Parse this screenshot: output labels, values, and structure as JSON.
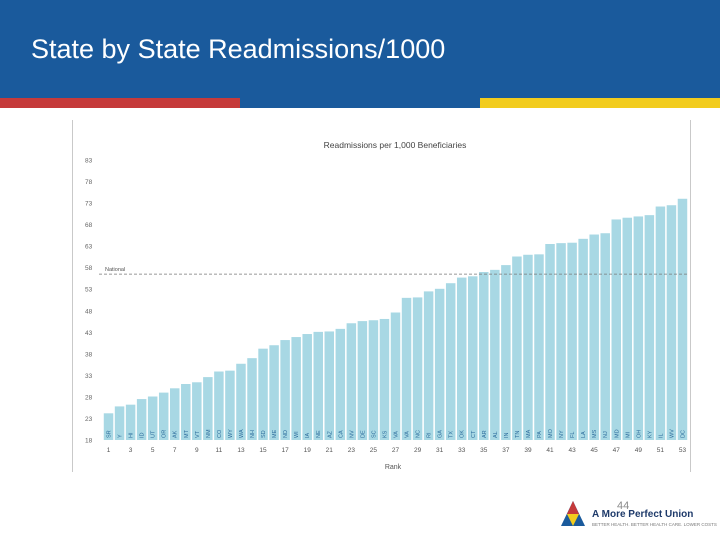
{
  "slide": {
    "title": "State by State Readmissions/1000",
    "page_number": "44"
  },
  "logo": {
    "name": "A More Perfect Union",
    "tagline": "BETTER HEALTH. BETTER HEALTH CARE. LOWER COSTS"
  },
  "colors": {
    "header": "#1a5a9c",
    "stripe_red": "#c53a3a",
    "stripe_blue": "#1a5a9c",
    "stripe_yellow": "#f2cc1e",
    "bar": "#a8d8e4",
    "national_line": "#777777"
  },
  "chart_data": {
    "type": "bar",
    "title": "Readmissions per 1,000 Beneficiaries",
    "xlabel": "Rank",
    "ylabel": "",
    "ylim": [
      18,
      83
    ],
    "yticks": [
      18,
      23,
      28,
      33,
      38,
      43,
      48,
      53,
      58,
      63,
      68,
      73,
      78,
      83
    ],
    "xtick_labels": [
      "1",
      "3",
      "5",
      "7",
      "9",
      "11",
      "13",
      "15",
      "17",
      "19",
      "21",
      "23",
      "25",
      "27",
      "29",
      "31",
      "33",
      "35",
      "37",
      "39",
      "41",
      "43",
      "45",
      "47",
      "49",
      "51",
      "53"
    ],
    "national_label": "National",
    "national_value": 56.5,
    "categories": [
      "SR",
      "Y",
      "HI",
      "ID",
      "UT",
      "OR",
      "AK",
      "MT",
      "VT",
      "NM",
      "CO",
      "WY",
      "WA",
      "NH",
      "SD",
      "ME",
      "ND",
      "WI",
      "IA",
      "NE",
      "AZ",
      "CA",
      "NV",
      "DE",
      "SC",
      "KS",
      "VA",
      "VA",
      "NC",
      "RI",
      "GA",
      "TX",
      "OK",
      "CT",
      "AR",
      "AL",
      "IN",
      "TN",
      "MA",
      "PA",
      "MO",
      "NY",
      "FL",
      "LA",
      "MS",
      "NJ",
      "MD",
      "MI",
      "OH",
      "KY",
      "IL",
      "WV",
      "DC"
    ],
    "values": [
      24.2,
      25.8,
      26.2,
      27.5,
      28.1,
      29.0,
      30.0,
      31.0,
      31.4,
      32.6,
      33.9,
      34.1,
      35.7,
      37.0,
      39.2,
      40.0,
      41.2,
      41.9,
      42.6,
      43.1,
      43.2,
      43.8,
      45.1,
      45.6,
      45.8,
      46.1,
      47.6,
      51.0,
      51.1,
      52.5,
      53.1,
      54.4,
      55.7,
      56.0,
      57.0,
      57.5,
      58.6,
      60.6,
      61.0,
      61.1,
      63.5,
      63.7,
      63.8,
      64.7,
      65.7,
      66.0,
      69.2,
      69.6,
      69.9,
      70.2,
      72.2,
      72.5,
      74.0
    ]
  }
}
